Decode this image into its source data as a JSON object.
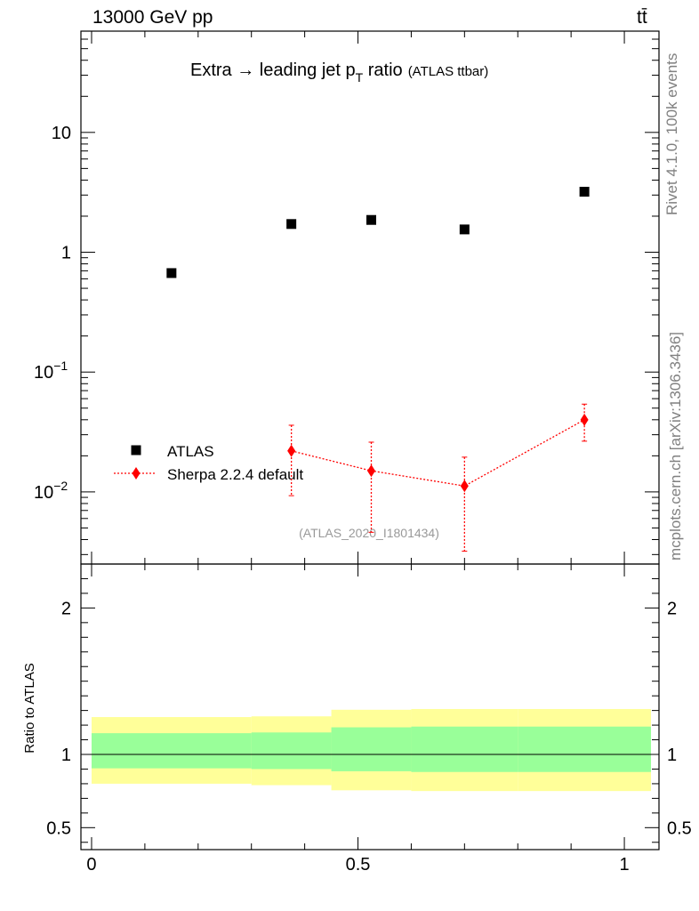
{
  "header": {
    "left": "13000 GeV pp",
    "right": "tt̄"
  },
  "side_labels": {
    "rivet": "Rivet 4.1.0,  100k events",
    "mcplots": "mcplots.cern.ch [arXiv:1306.3436]"
  },
  "colors": {
    "data": "#000000",
    "mc": "#ff0000",
    "band_inner": "#99ff99",
    "band_outer": "#ffff99"
  },
  "chart_data": [
    {
      "type": "scatter",
      "title": "Extra → leading jet p",
      "title_sub": "T",
      "title_tail": " ratio",
      "title_note": "(ATLAS ttbar)",
      "watermark": "(ATLAS_2020_I1801434)",
      "yscale": "log",
      "ylim": [
        0.0025,
        70
      ],
      "xlim": [
        -0.02,
        1.065
      ],
      "yticks": [
        {
          "value": 0.01,
          "base": "10",
          "exp": "−2"
        },
        {
          "value": 0.1,
          "base": "10",
          "exp": "−1"
        },
        {
          "value": 1,
          "base": "1",
          "exp": ""
        },
        {
          "value": 10,
          "base": "10",
          "exp": ""
        }
      ],
      "legend_position": "lower-left",
      "series": [
        {
          "name": "ATLAS",
          "marker": "square",
          "x": [
            0.15,
            0.375,
            0.525,
            0.7,
            0.925
          ],
          "y": [
            0.67,
            1.72,
            1.86,
            1.55,
            3.2
          ]
        },
        {
          "name": "Sherpa 2.2.4 default",
          "marker": "diamond",
          "line": "dotted",
          "x": [
            0.375,
            0.525,
            0.7,
            0.925
          ],
          "y": [
            0.022,
            0.015,
            0.0112,
            0.04
          ],
          "y_low": [
            0.0093,
            0.0046,
            0.0032,
            0.0265
          ],
          "y_high": [
            0.036,
            0.026,
            0.0195,
            0.054
          ]
        }
      ]
    },
    {
      "type": "area",
      "ylabel": "Ratio to ATLAS",
      "ylim": [
        0.35,
        2.3
      ],
      "xlim": [
        -0.02,
        1.065
      ],
      "xticks": [
        {
          "value": 0,
          "label": "0"
        },
        {
          "value": 0.5,
          "label": "0.5"
        },
        {
          "value": 1,
          "label": "1"
        }
      ],
      "yticks": [
        {
          "value": 0.5,
          "label": "0.5"
        },
        {
          "value": 1,
          "label": "1"
        },
        {
          "value": 2,
          "label": "2"
        }
      ],
      "reference_line": 1,
      "bands": [
        {
          "x0": 0.0,
          "x1": 0.3,
          "inner": [
            0.905,
            1.145
          ],
          "outer": [
            0.8,
            1.255
          ]
        },
        {
          "x0": 0.3,
          "x1": 0.45,
          "inner": [
            0.9,
            1.15
          ],
          "outer": [
            0.79,
            1.26
          ]
        },
        {
          "x0": 0.45,
          "x1": 0.6,
          "inner": [
            0.885,
            1.185
          ],
          "outer": [
            0.755,
            1.305
          ]
        },
        {
          "x0": 0.6,
          "x1": 0.8,
          "inner": [
            0.88,
            1.19
          ],
          "outer": [
            0.75,
            1.31
          ]
        },
        {
          "x0": 0.8,
          "x1": 1.05,
          "inner": [
            0.88,
            1.19
          ],
          "outer": [
            0.75,
            1.31
          ]
        }
      ]
    }
  ]
}
